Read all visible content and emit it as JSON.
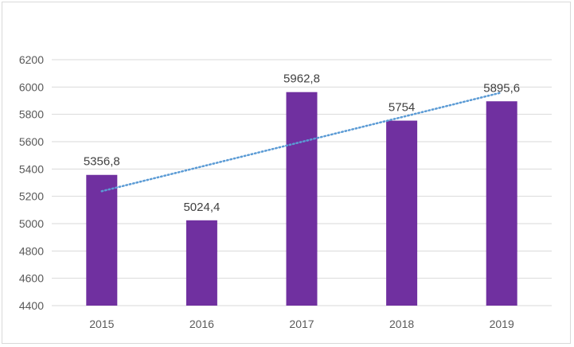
{
  "chart_data": {
    "type": "bar",
    "title": "",
    "xlabel": "",
    "ylabel": "",
    "categories": [
      "2015",
      "2016",
      "2017",
      "2018",
      "2019"
    ],
    "values": [
      5356.8,
      5024.4,
      5962.8,
      5754,
      5895.6
    ],
    "value_labels": [
      "5356,8",
      "5024,4",
      "5962,8",
      "5754",
      "5895,6"
    ],
    "ylim": [
      4400,
      6200
    ],
    "yticks": [
      4400,
      4600,
      4800,
      5000,
      5200,
      5400,
      5600,
      5800,
      6000,
      6200
    ],
    "grid": true,
    "trendline": {
      "type": "linear",
      "style": "dotted"
    },
    "colors": {
      "bar": "#7030a0",
      "trend": "#5b9bd5",
      "grid": "#d9d9d9"
    }
  }
}
